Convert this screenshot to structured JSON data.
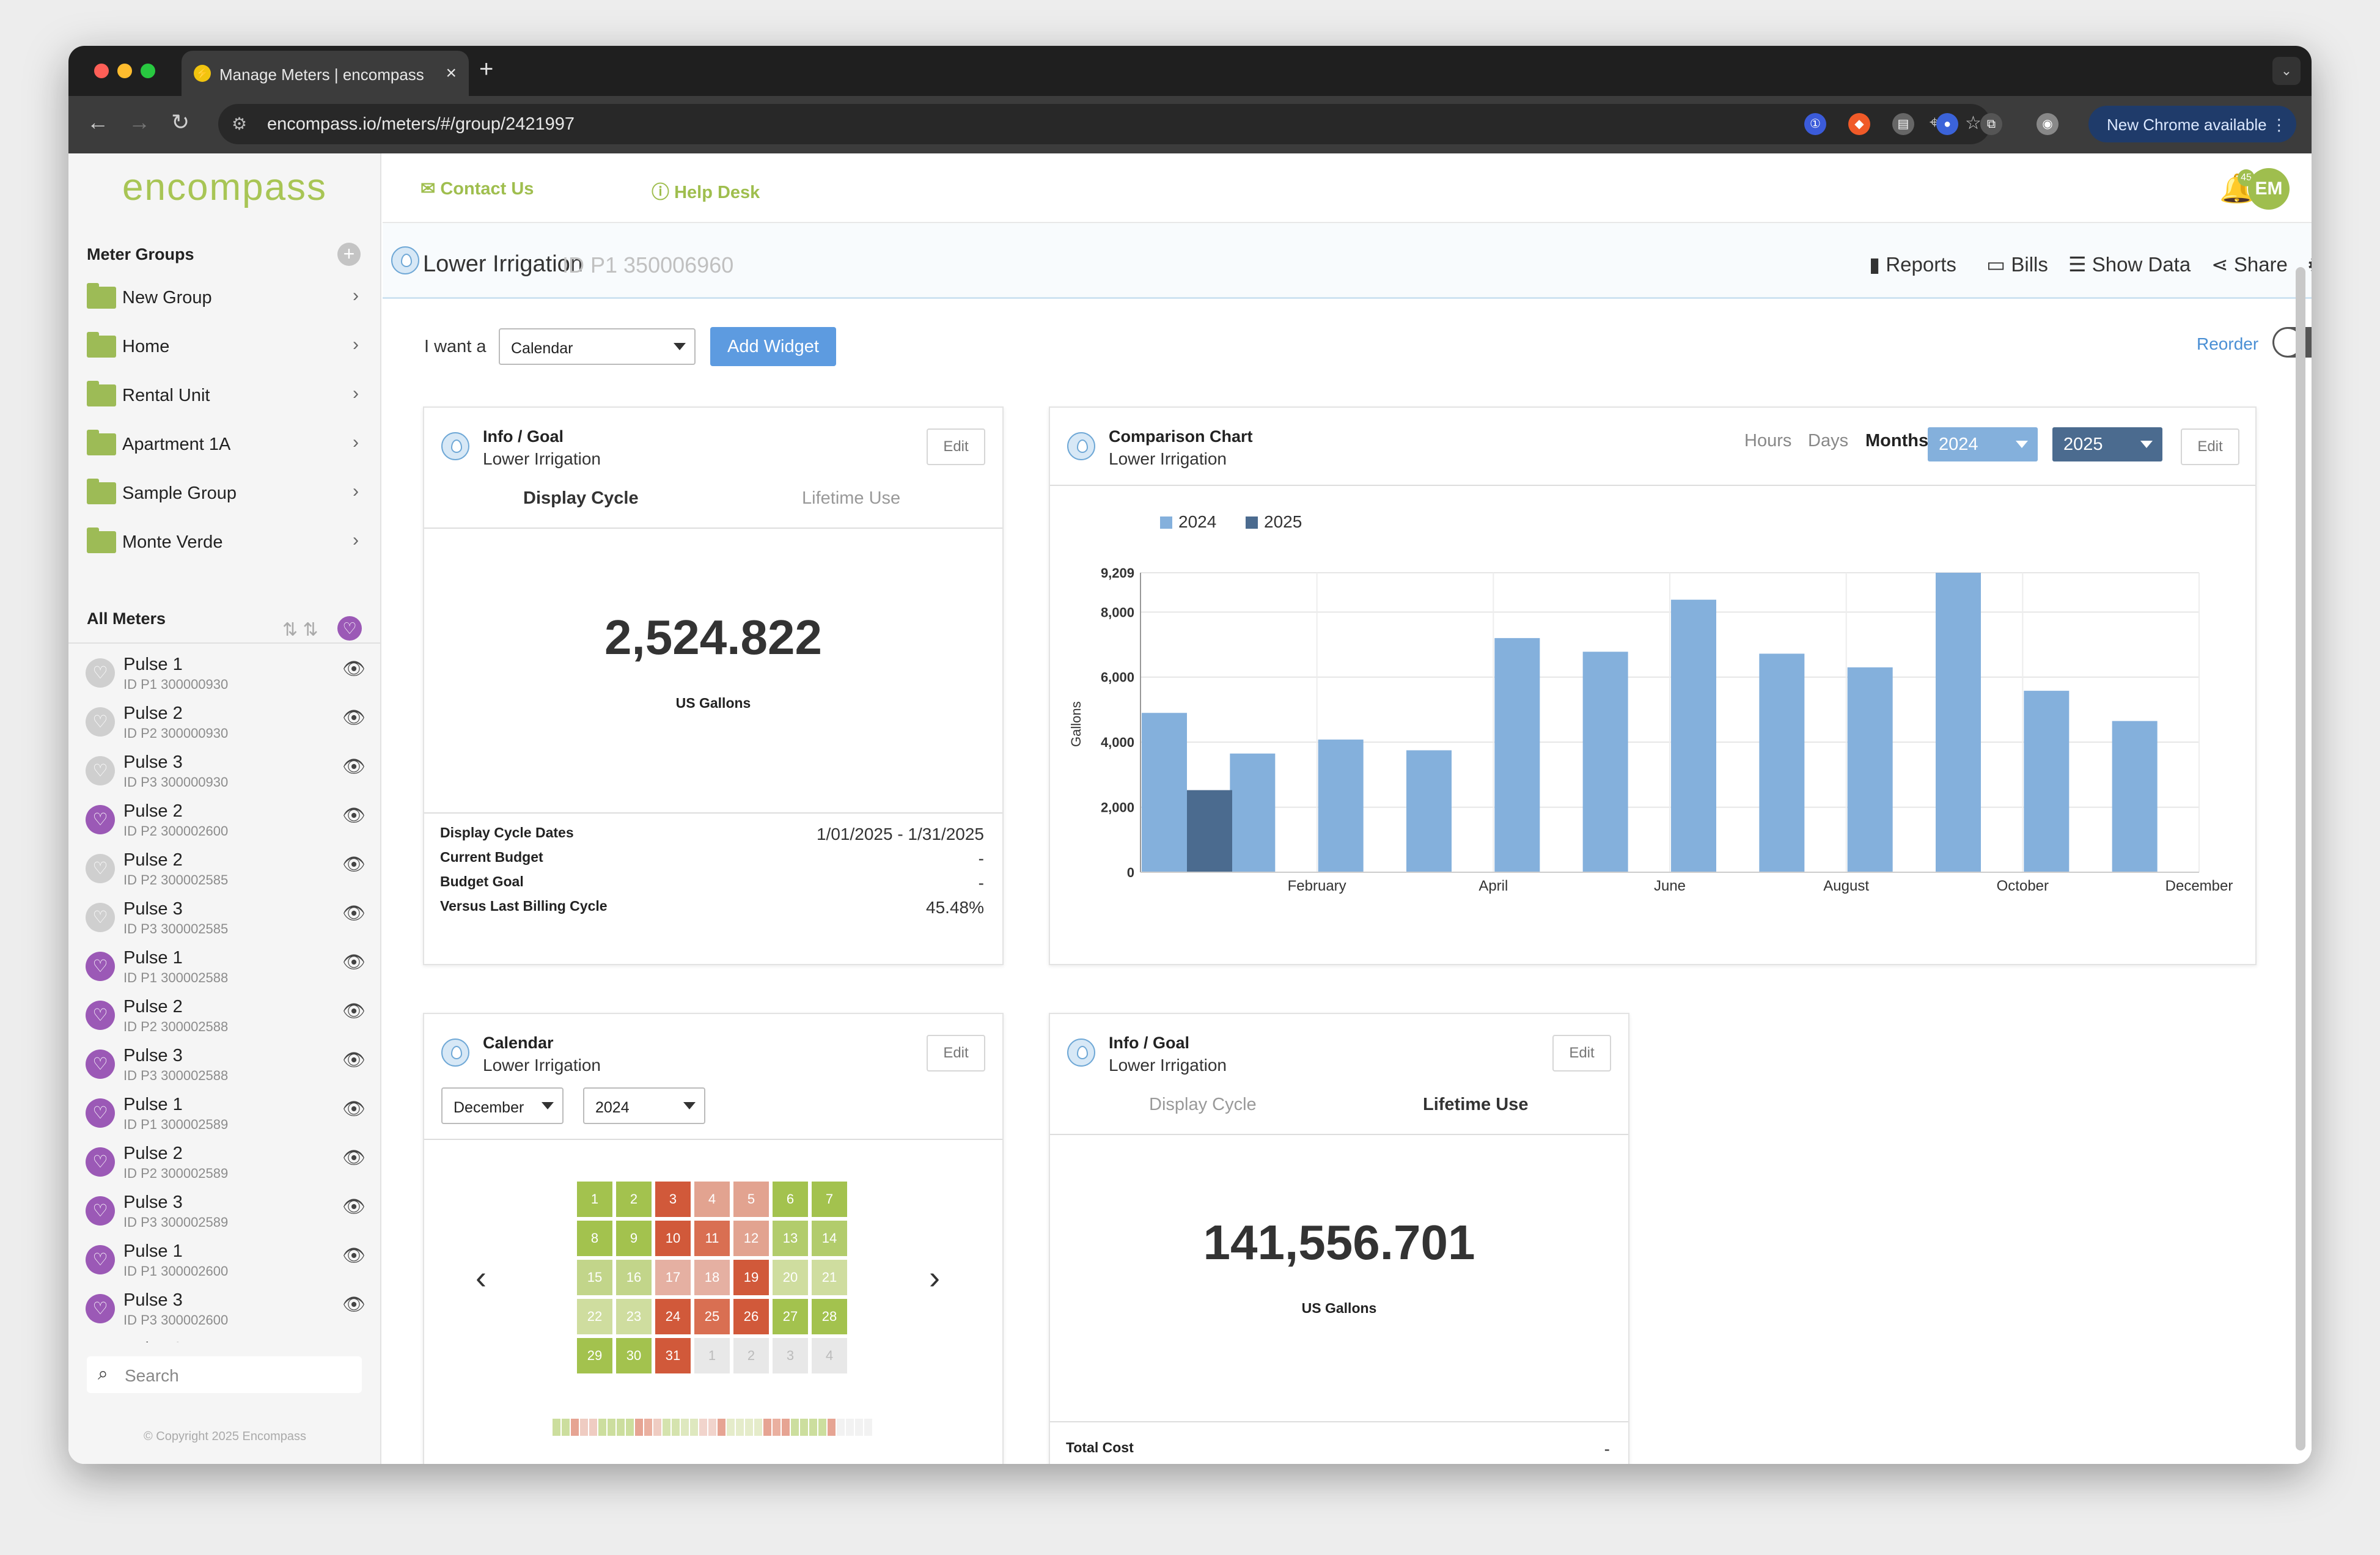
{
  "browser": {
    "tab_title": "Manage Meters | encompass",
    "url": "encompass.io/meters/#/group/2421997",
    "update_label": "New Chrome available"
  },
  "app": {
    "logo": "encompass",
    "contact": "Contact Us",
    "help": "Help Desk",
    "notif_count": "45",
    "avatar": "EM",
    "copyright": "© Copyright 2025 Encompass",
    "search_placeholder": "Search"
  },
  "groups": {
    "title": "Meter Groups",
    "items": [
      "New Group",
      "Home",
      "Rental Unit",
      "Apartment 1A",
      "Sample Group",
      "Monte Verde"
    ]
  },
  "all_meters": {
    "title": "All Meters",
    "items": [
      {
        "name": "Pulse 1",
        "id": "ID P1 300000930",
        "fav": false
      },
      {
        "name": "Pulse 2",
        "id": "ID P2 300000930",
        "fav": false
      },
      {
        "name": "Pulse 3",
        "id": "ID P3 300000930",
        "fav": false
      },
      {
        "name": "Pulse 2",
        "id": "ID P2 300002600",
        "fav": true
      },
      {
        "name": "Pulse 2",
        "id": "ID P2 300002585",
        "fav": false
      },
      {
        "name": "Pulse 3",
        "id": "ID P3 300002585",
        "fav": false
      },
      {
        "name": "Pulse 1",
        "id": "ID P1 300002588",
        "fav": true
      },
      {
        "name": "Pulse 2",
        "id": "ID P2 300002588",
        "fav": true
      },
      {
        "name": "Pulse 3",
        "id": "ID P3 300002588",
        "fav": true
      },
      {
        "name": "Pulse 1",
        "id": "ID P1 300002589",
        "fav": true
      },
      {
        "name": "Pulse 2",
        "id": "ID P2 300002589",
        "fav": true
      },
      {
        "name": "Pulse 3",
        "id": "ID P3 300002589",
        "fav": true
      },
      {
        "name": "Pulse 1",
        "id": "ID P1 300002600",
        "fav": true
      },
      {
        "name": "Pulse 3",
        "id": "ID P3 300002600",
        "fav": true
      },
      {
        "name": "Pulse 2",
        "id": "",
        "fav": false
      }
    ]
  },
  "header": {
    "title": "Lower Irrigation",
    "id": "ID P1 350006960",
    "reports": "Reports",
    "bills": "Bills",
    "show_data": "Show Data",
    "share": "Share"
  },
  "widget_bar": {
    "i_want": "I want a",
    "selected": "Calendar",
    "add": "Add Widget",
    "reorder": "Reorder"
  },
  "info1": {
    "title": "Info / Goal",
    "subtitle": "Lower Irrigation",
    "edit": "Edit",
    "tab1": "Display Cycle",
    "tab2": "Lifetime Use",
    "value": "2,524.822",
    "unit": "US Gallons",
    "stats": [
      {
        "k": "Display Cycle Dates",
        "v": "1/01/2025 - 1/31/2025"
      },
      {
        "k": "Current Budget",
        "v": "-"
      },
      {
        "k": "Budget Goal",
        "v": "-"
      },
      {
        "k": "Versus Last Billing Cycle",
        "v": "45.48%"
      }
    ]
  },
  "comparison": {
    "title": "Comparison Chart",
    "subtitle": "Lower Irrigation",
    "hours": "Hours",
    "days": "Days",
    "months": "Months",
    "year1": "2024",
    "year2": "2025",
    "edit": "Edit"
  },
  "chart_data": {
    "type": "bar",
    "ylabel": "Gallons",
    "ylim": [
      0,
      9209
    ],
    "yticks": [
      "0",
      "2,000",
      "4,000",
      "6,000",
      "8,000",
      "9,209"
    ],
    "categories": [
      "January",
      "February",
      "March",
      "April",
      "May",
      "June",
      "July",
      "August",
      "September",
      "October",
      "November",
      "December"
    ],
    "xtick_labels": [
      "",
      "February",
      "",
      "April",
      "",
      "June",
      "",
      "August",
      "",
      "October",
      "",
      "December"
    ],
    "series": [
      {
        "name": "2024",
        "color": "#84b0dc",
        "values": [
          4900,
          3650,
          4080,
          3750,
          7200,
          6780,
          8380,
          6720,
          6300,
          9209,
          5580,
          4650
        ]
      },
      {
        "name": "2025",
        "color": "#4b6b8f",
        "values": [
          2525,
          null,
          null,
          null,
          null,
          null,
          null,
          null,
          null,
          null,
          null,
          null
        ]
      }
    ],
    "legend": "top-left",
    "grid": true
  },
  "calendar": {
    "title": "Calendar",
    "subtitle": "Lower Irrigation",
    "edit": "Edit",
    "month": "December",
    "year": "2024",
    "days": [
      {
        "d": "1",
        "c": "#a3c24e"
      },
      {
        "d": "2",
        "c": "#a3c24e"
      },
      {
        "d": "3",
        "c": "#d1593a"
      },
      {
        "d": "4",
        "c": "#e2a390"
      },
      {
        "d": "5",
        "c": "#e2a390"
      },
      {
        "d": "6",
        "c": "#a3c24e"
      },
      {
        "d": "7",
        "c": "#a3c24e"
      },
      {
        "d": "8",
        "c": "#a3c24e"
      },
      {
        "d": "9",
        "c": "#a3c24e"
      },
      {
        "d": "10",
        "c": "#d1593a"
      },
      {
        "d": "11",
        "c": "#d96f52"
      },
      {
        "d": "12",
        "c": "#e2a390"
      },
      {
        "d": "13",
        "c": "#b2cc6c"
      },
      {
        "d": "14",
        "c": "#b2cc6c"
      },
      {
        "d": "15",
        "c": "#c2d58a"
      },
      {
        "d": "16",
        "c": "#c2d58a"
      },
      {
        "d": "17",
        "c": "#e5b0a2"
      },
      {
        "d": "18",
        "c": "#e5b0a2"
      },
      {
        "d": "19",
        "c": "#d1593a"
      },
      {
        "d": "20",
        "c": "#cfdd9f"
      },
      {
        "d": "21",
        "c": "#cfdd9f"
      },
      {
        "d": "22",
        "c": "#cfdd9f"
      },
      {
        "d": "23",
        "c": "#cfdd9f"
      },
      {
        "d": "24",
        "c": "#d1593a"
      },
      {
        "d": "25",
        "c": "#d96f52"
      },
      {
        "d": "26",
        "c": "#d1593a"
      },
      {
        "d": "27",
        "c": "#a3c24e"
      },
      {
        "d": "28",
        "c": "#a3c24e"
      },
      {
        "d": "29",
        "c": "#a3c24e"
      },
      {
        "d": "30",
        "c": "#a3c24e"
      },
      {
        "d": "31",
        "c": "#d1593a"
      },
      {
        "d": "1",
        "c": "#e8e8e8"
      },
      {
        "d": "2",
        "c": "#e8e8e8"
      },
      {
        "d": "3",
        "c": "#e8e8e8"
      },
      {
        "d": "4",
        "c": "#e8e8e8"
      }
    ]
  },
  "info2": {
    "title": "Info / Goal",
    "subtitle": "Lower Irrigation",
    "edit": "Edit",
    "tab1": "Display Cycle",
    "tab2": "Lifetime Use",
    "value": "141,556.701",
    "unit": "US Gallons",
    "total_cost_label": "Total Cost",
    "total_cost": "-"
  }
}
